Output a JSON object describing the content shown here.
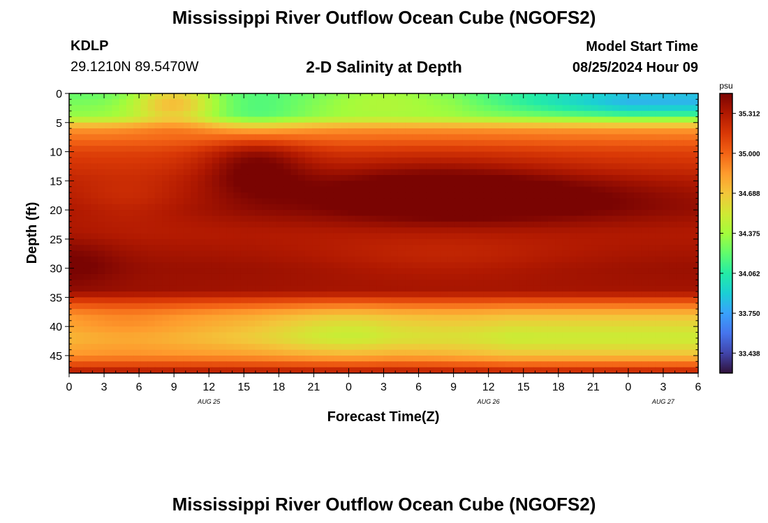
{
  "header": {
    "title": "Mississippi River Outflow Ocean Cube (NGOFS2)",
    "station": "KDLP",
    "coordinates": "29.1210N  89.5470W",
    "subtitle": "2-D Salinity at Depth",
    "start_label": "Model Start Time",
    "start_value": "08/25/2024 Hour 09"
  },
  "footer": {
    "title": "Mississippi River Outflow Ocean Cube (NGOFS2)"
  },
  "chart_data": {
    "type": "heatmap",
    "xlabel": "Forecast Time(Z)",
    "ylabel": "Depth (ft)",
    "x_tick_labels": [
      "0",
      "3",
      "6",
      "9",
      "12",
      "15",
      "18",
      "21",
      "0",
      "3",
      "6",
      "9",
      "12",
      "15",
      "18",
      "21",
      "0",
      "3",
      "6"
    ],
    "date_labels": [
      {
        "text": "AUG 25",
        "at_tick": 4
      },
      {
        "text": "AUG 26",
        "at_tick": 12
      },
      {
        "text": "AUG 27",
        "at_tick": 17
      }
    ],
    "x_hours_range": [
      0,
      54
    ],
    "y_ticks": [
      0,
      5,
      10,
      15,
      20,
      25,
      30,
      35,
      40,
      45
    ],
    "ylim": [
      0,
      48
    ],
    "colorbar": {
      "unit": "psu",
      "ticks": [
        "35.312",
        "35.000",
        "34.688",
        "34.375",
        "34.062",
        "33.750",
        "33.438"
      ],
      "range": [
        33.282,
        35.468
      ]
    },
    "value_range": [
      33.282,
      35.468
    ]
  },
  "colors": {
    "palette": [
      "#30123b",
      "#4145ab",
      "#4675ed",
      "#39a2fc",
      "#1bcfd4",
      "#24eca6",
      "#61fc6c",
      "#a4fc3b",
      "#d1e834",
      "#f3c63a",
      "#fe9b2d",
      "#f36315",
      "#d93806",
      "#b11901",
      "#7a0402"
    ]
  }
}
